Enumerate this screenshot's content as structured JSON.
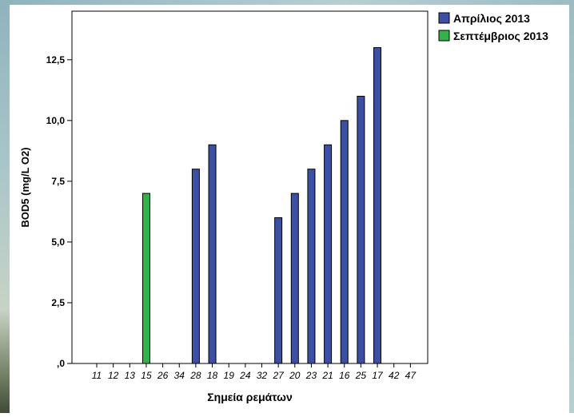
{
  "chart_data": {
    "type": "bar",
    "categories": [
      "11",
      "12",
      "13",
      "15",
      "26",
      "34",
      "28",
      "18",
      "19",
      "24",
      "32",
      "27",
      "20",
      "23",
      "21",
      "16",
      "25",
      "17",
      "42",
      "47"
    ],
    "series": [
      {
        "name": "Απρίλιος 2013",
        "color": "#3b4fa3",
        "values": [
          0,
          0,
          0,
          0,
          0,
          0,
          8,
          9,
          0,
          0,
          0,
          6,
          7,
          8,
          9,
          10,
          11,
          13,
          0,
          0
        ]
      },
      {
        "name": "Σεπτέμβριος 2013",
        "color": "#33b24a",
        "values": [
          0,
          0,
          0,
          7,
          0,
          0,
          0,
          0,
          0,
          0,
          0,
          0,
          0,
          0,
          0,
          0,
          0,
          0,
          0,
          0
        ]
      }
    ],
    "xlabel": "Σημεία ρεμάτων",
    "ylabel": "BOD5 (mg/L O2)",
    "ylim": [
      0,
      14.5
    ],
    "yticks": [
      ",0",
      "2,5",
      "5,0",
      "7,5",
      "10,0",
      "12,5"
    ],
    "ytick_values": [
      0,
      2.5,
      5.0,
      7.5,
      10.0,
      12.5
    ],
    "grid": false,
    "legend_position": "top-right"
  }
}
